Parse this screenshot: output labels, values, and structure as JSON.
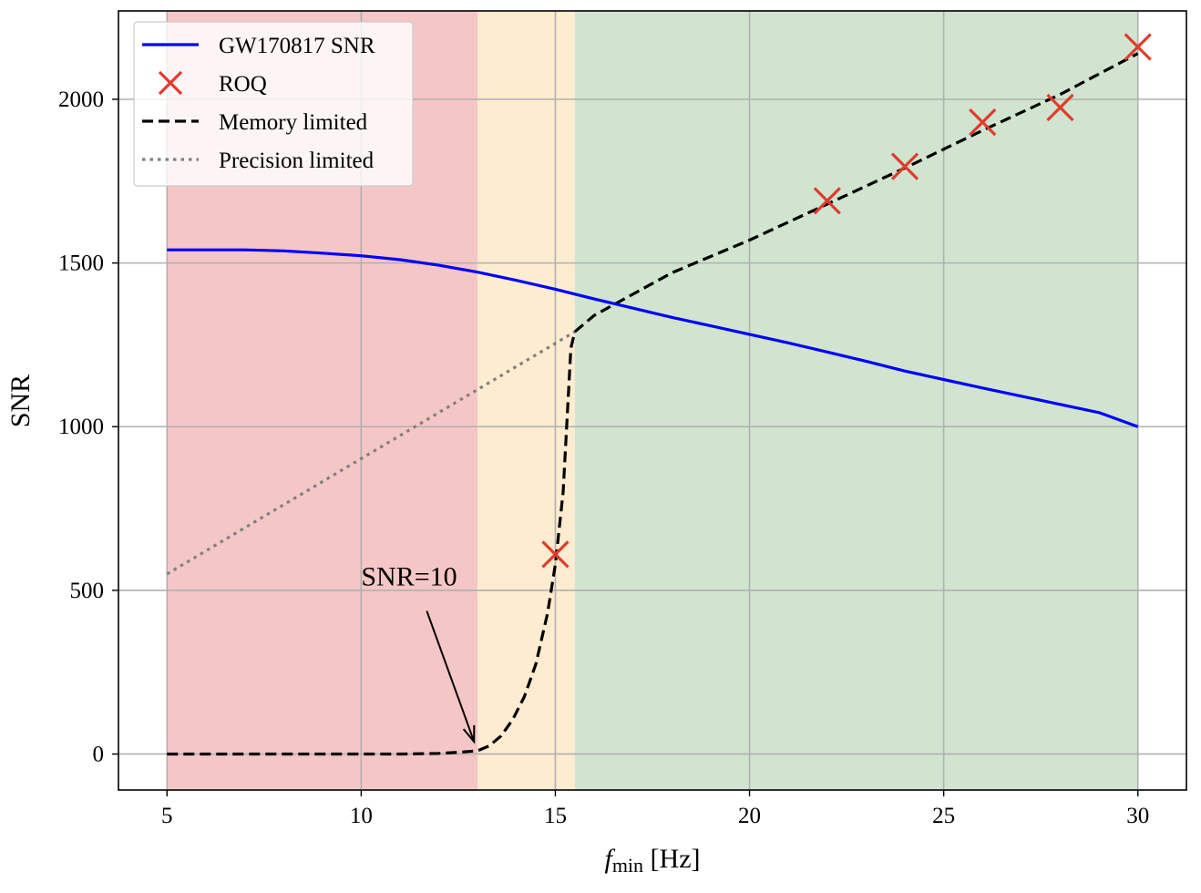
{
  "chart_data": {
    "type": "line",
    "xlabel_main": "f",
    "xlabel_sub": "min",
    "xlabel_unit": " [Hz]",
    "ylabel": "SNR",
    "xlim": [
      3.75,
      31.25
    ],
    "ylim": [
      -110,
      2270
    ],
    "xticks": [
      5,
      10,
      15,
      20,
      25,
      30
    ],
    "yticks": [
      0,
      500,
      1000,
      1500,
      2000
    ],
    "grid": true,
    "legend_position": "top-left",
    "regions": [
      {
        "x0": 5,
        "x1": 13,
        "color": "#f5c6c6"
      },
      {
        "x0": 13,
        "x1": 15.5,
        "color": "#fdecd0"
      },
      {
        "x0": 15.5,
        "x1": 30,
        "color": "#d1e4d0"
      }
    ],
    "series": [
      {
        "name": "GW170817 SNR",
        "style": "solid",
        "color": "#0000ff",
        "x": [
          5,
          6,
          7,
          8,
          9,
          10,
          11,
          12,
          13,
          14,
          15,
          16,
          17,
          18,
          19,
          20,
          21,
          22,
          23,
          24,
          25,
          26,
          27,
          28,
          29,
          30
        ],
        "y": [
          1540,
          1540,
          1540,
          1537,
          1530,
          1522,
          1510,
          1493,
          1472,
          1447,
          1420,
          1390,
          1362,
          1334,
          1308,
          1282,
          1256,
          1228,
          1200,
          1170,
          1144,
          1118,
          1093,
          1068,
          1043,
          1000
        ]
      },
      {
        "name": "ROQ",
        "style": "marker-x",
        "color": "#e03c2d",
        "x": [
          15,
          22,
          24,
          26,
          28,
          30
        ],
        "y": [
          610,
          1690,
          1795,
          1930,
          1975,
          2160
        ]
      },
      {
        "name": "Memory limited",
        "style": "dashed",
        "color": "#000000",
        "x": [
          5,
          8,
          10,
          11,
          12,
          12.5,
          13,
          13.3,
          13.6,
          13.9,
          14.2,
          14.5,
          14.8,
          15.0,
          15.2,
          15.4,
          15.5,
          16,
          18,
          20,
          22,
          24,
          26,
          28,
          30
        ],
        "y": [
          0,
          0,
          0,
          0,
          2,
          5,
          10,
          25,
          55,
          105,
          175,
          275,
          430,
          580,
          800,
          1240,
          1290,
          1340,
          1470,
          1570,
          1680,
          1790,
          1905,
          2015,
          2140
        ]
      },
      {
        "name": "Precision limited",
        "style": "dotted",
        "color": "#808080",
        "x": [
          5,
          15.5
        ],
        "y": [
          550,
          1290
        ]
      }
    ],
    "annotations": [
      {
        "text": "SNR=10",
        "text_x": 10,
        "text_y": 515,
        "arrow_to_x": 13,
        "arrow_to_y": 10
      }
    ]
  }
}
